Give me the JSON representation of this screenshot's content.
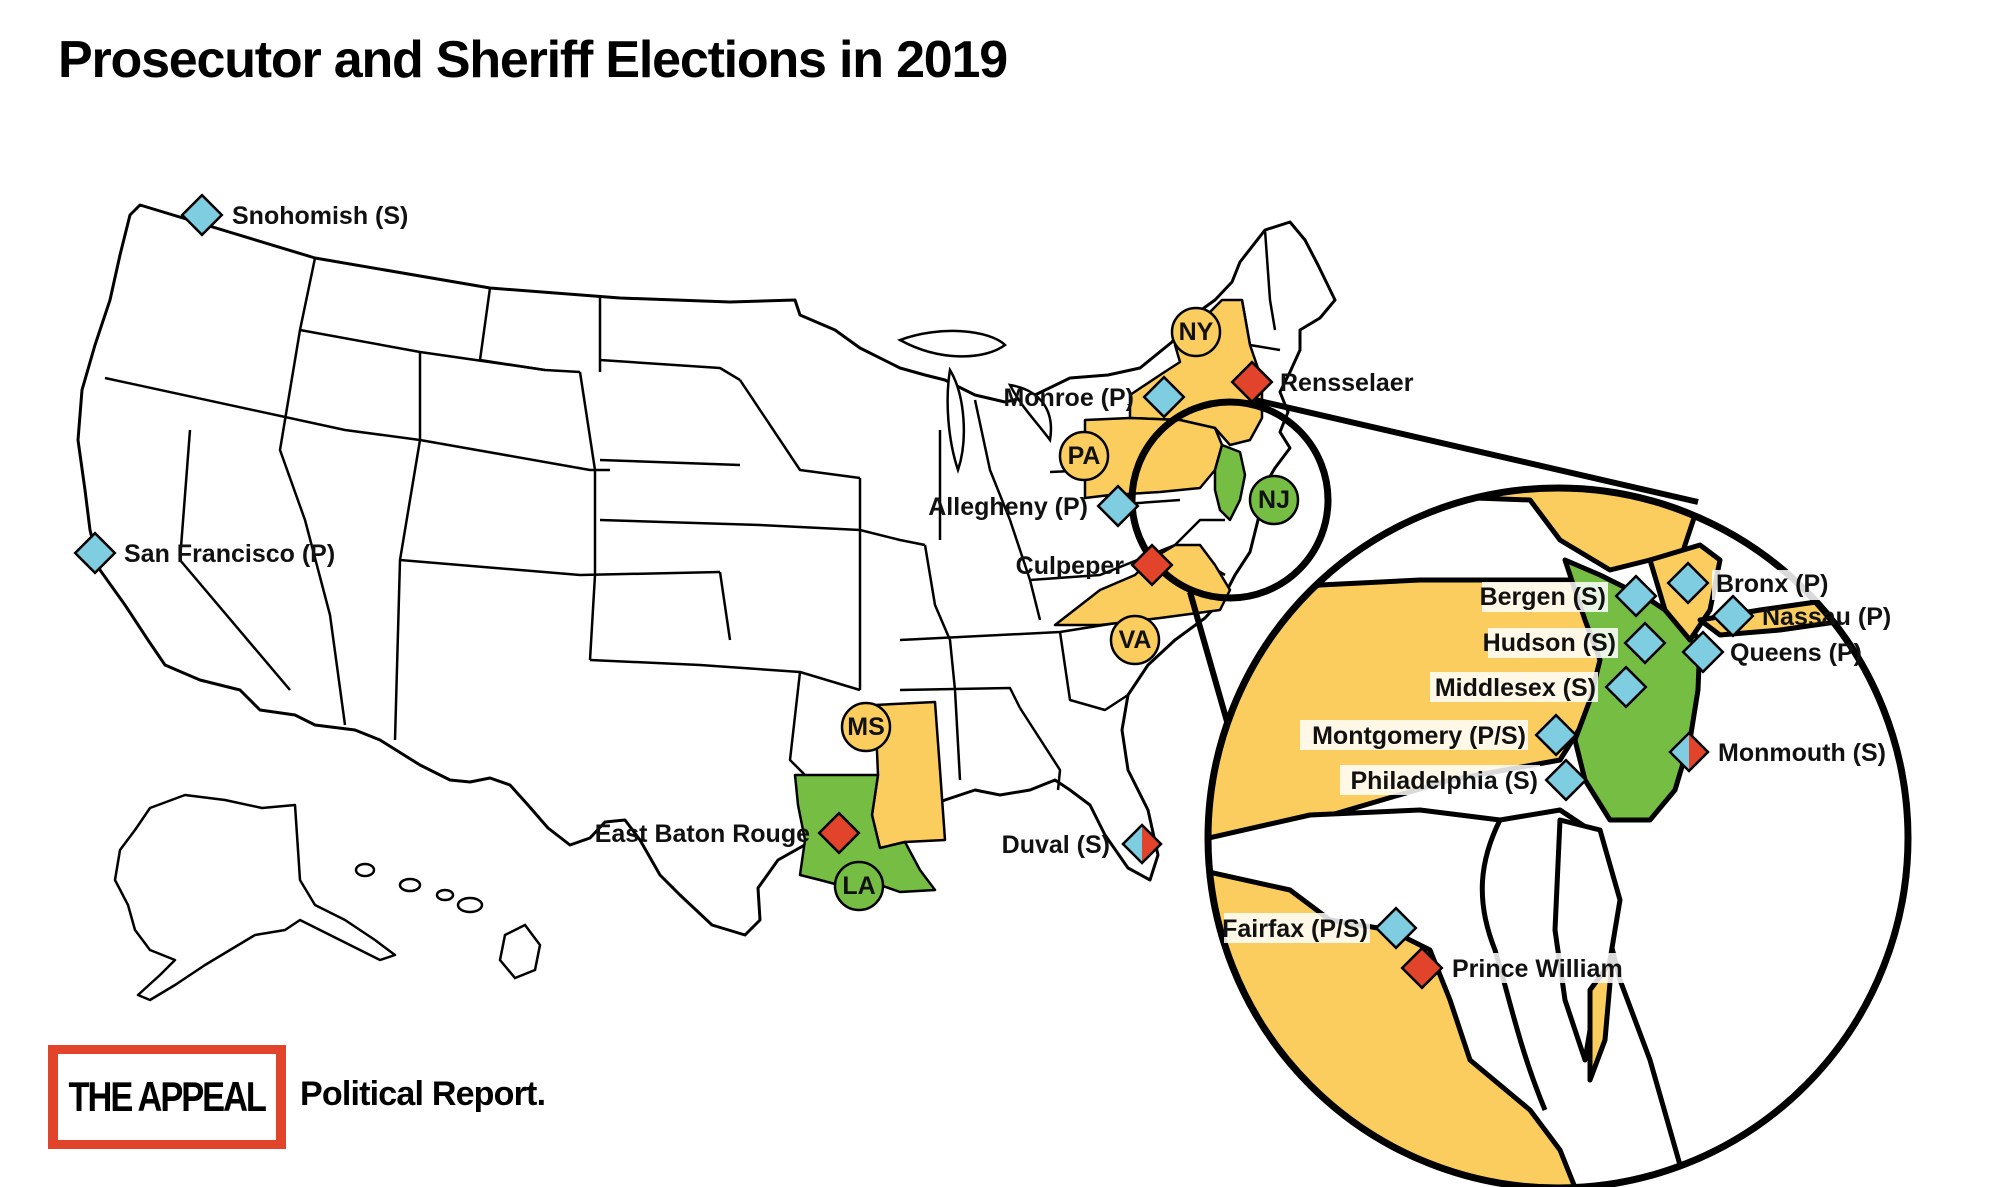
{
  "title": "Prosecutor and Sheriff Elections in 2019",
  "colors": {
    "prosecutor": "#7ecde0",
    "sheriff": "#e1432b",
    "state_highlight_yellow": "#fbcd5e",
    "state_highlight_green": "#76be43",
    "outline": "#000000"
  },
  "states": [
    {
      "abbr": "NY",
      "color": "yellow"
    },
    {
      "abbr": "PA",
      "color": "yellow"
    },
    {
      "abbr": "VA",
      "color": "yellow"
    },
    {
      "abbr": "MS",
      "color": "yellow"
    },
    {
      "abbr": "NJ",
      "color": "green"
    },
    {
      "abbr": "LA",
      "color": "green"
    }
  ],
  "elections": [
    {
      "label": "Snohomish (S)",
      "marker": "prosecutor"
    },
    {
      "label": "San Francisco (P)",
      "marker": "prosecutor"
    },
    {
      "label": "Monroe (P)",
      "marker": "prosecutor"
    },
    {
      "label": "Rensselaer",
      "marker": "sheriff"
    },
    {
      "label": "Allegheny (P)",
      "marker": "prosecutor"
    },
    {
      "label": "Culpeper",
      "marker": "sheriff"
    },
    {
      "label": "East Baton Rouge",
      "marker": "sheriff"
    },
    {
      "label": "Duval (S)",
      "marker": "split"
    }
  ],
  "inset_elections": [
    {
      "label": "Bergen (S)",
      "marker": "prosecutor"
    },
    {
      "label": "Bronx (P)",
      "marker": "prosecutor"
    },
    {
      "label": "Nassau (P)",
      "marker": "prosecutor"
    },
    {
      "label": "Hudson (S)",
      "marker": "prosecutor"
    },
    {
      "label": "Queens (P)",
      "marker": "prosecutor"
    },
    {
      "label": "Middlesex (S)",
      "marker": "prosecutor"
    },
    {
      "label": "Montgomery (P/S)",
      "marker": "prosecutor"
    },
    {
      "label": "Monmouth (S)",
      "marker": "split"
    },
    {
      "label": "Philadelphia (S)",
      "marker": "prosecutor"
    },
    {
      "label": "Fairfax (P/S)",
      "marker": "prosecutor"
    },
    {
      "label": "Prince William",
      "marker": "sheriff"
    }
  ],
  "logo": {
    "name": "THE APPEAL",
    "tagline": "Political Report."
  }
}
